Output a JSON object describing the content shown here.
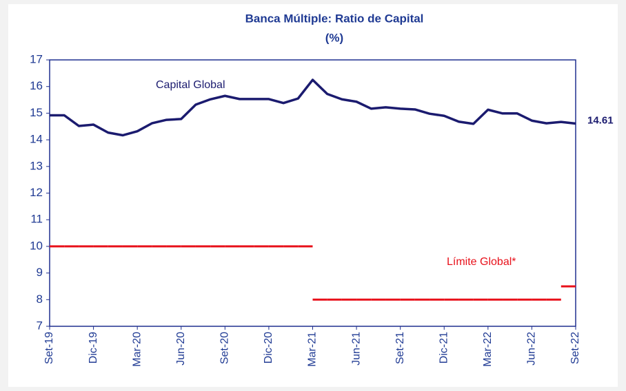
{
  "chart_data": {
    "type": "line",
    "title": "Banca Múltiple: Ratio de Capital",
    "subtitle": "(%)",
    "categories": [
      "Set-19",
      null,
      null,
      "Dic-19",
      null,
      null,
      "Mar-20",
      null,
      null,
      "Jun-20",
      null,
      null,
      "Set-20",
      null,
      null,
      "Dic-20",
      null,
      null,
      "Mar-21",
      null,
      null,
      "Jun-21",
      null,
      null,
      "Set-21",
      null,
      null,
      "Dic-21",
      null,
      null,
      "Mar-22",
      null,
      null,
      "Jun-22",
      null,
      null,
      "Set-22"
    ],
    "series": [
      {
        "name": "Capital Global",
        "color": "#1b1b6f",
        "values": [
          14.92,
          14.92,
          14.52,
          14.57,
          14.27,
          14.17,
          14.32,
          14.62,
          14.75,
          14.78,
          15.32,
          15.52,
          15.65,
          15.53,
          15.53,
          15.53,
          15.38,
          15.55,
          16.25,
          15.72,
          15.52,
          15.43,
          15.17,
          15.22,
          15.17,
          15.14,
          14.98,
          14.9,
          14.68,
          14.6,
          15.13,
          14.99,
          14.99,
          14.72,
          14.62,
          14.67,
          14.61
        ],
        "end_label": "14.61"
      },
      {
        "name": "Límite Global*",
        "color": "#e8101a",
        "step": true,
        "values": [
          10,
          10,
          10,
          10,
          10,
          10,
          10,
          10,
          10,
          10,
          10,
          10,
          10,
          10,
          10,
          10,
          10,
          10,
          8,
          8,
          8,
          8,
          8,
          8,
          8,
          8,
          8,
          8,
          8,
          8,
          8,
          8,
          8,
          8,
          8,
          8.5,
          null
        ]
      }
    ],
    "ylim": [
      7,
      17
    ],
    "yticks": [
      7,
      8,
      9,
      10,
      11,
      12,
      13,
      14,
      15,
      16,
      17
    ],
    "grid": false
  }
}
